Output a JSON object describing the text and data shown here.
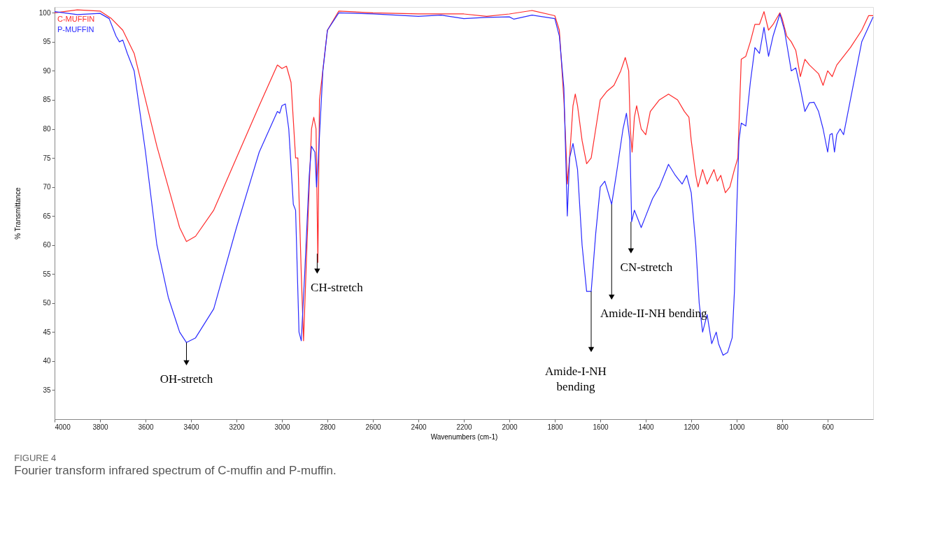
{
  "chart_data": {
    "type": "line",
    "xlabel": "Wavenumbers (cm-1)",
    "ylabel": "% Transmittance",
    "xlim": [
      4000,
      400
    ],
    "xticks": [
      4000,
      3800,
      3600,
      3400,
      3200,
      3000,
      2800,
      2600,
      2400,
      2200,
      2000,
      1800,
      1600,
      1400,
      1200,
      1000,
      800,
      600
    ],
    "ylim": [
      30,
      101
    ],
    "yticks": [
      35,
      40,
      45,
      50,
      55,
      60,
      65,
      70,
      75,
      80,
      85,
      90,
      95,
      100
    ],
    "grid": false,
    "legend": "top left",
    "line_style": "solid",
    "marker": "none",
    "series": [
      {
        "name": "C-MUFFIN",
        "color": "#ff2a2a",
        "x": [
          4000,
          3900,
          3800,
          3750,
          3700,
          3650,
          3600,
          3550,
          3500,
          3450,
          3420,
          3380,
          3300,
          3200,
          3100,
          3020,
          3000,
          2980,
          2960,
          2940,
          2930,
          2915,
          2905,
          2890,
          2870,
          2860,
          2850,
          2842,
          2835,
          2800,
          2750,
          2600,
          2400,
          2200,
          2100,
          2000,
          1900,
          1800,
          1780,
          1760,
          1750,
          1745,
          1735,
          1720,
          1710,
          1700,
          1680,
          1660,
          1640,
          1620,
          1600,
          1570,
          1540,
          1510,
          1490,
          1475,
          1468,
          1460,
          1450,
          1440,
          1420,
          1400,
          1380,
          1340,
          1300,
          1260,
          1230,
          1210,
          1200,
          1180,
          1170,
          1150,
          1130,
          1100,
          1085,
          1070,
          1050,
          1030,
          1010,
          995,
          980,
          960,
          940,
          920,
          900,
          880,
          860,
          840,
          810,
          800,
          780,
          760,
          740,
          720,
          700,
          680,
          640,
          620,
          600,
          580,
          560,
          500,
          450,
          420,
          400
        ],
        "values": [
          100,
          100.5,
          100.3,
          99,
          97,
          93,
          85,
          77,
          70,
          63,
          60.6,
          61.5,
          66,
          75,
          84,
          91,
          90.4,
          90.8,
          88,
          75,
          75,
          55,
          43.5,
          60,
          80,
          82,
          80,
          57,
          85,
          97,
          100.3,
          100,
          99.8,
          99.8,
          99.4,
          99.8,
          100.4,
          99.5,
          97,
          85,
          76,
          70.5,
          75,
          84,
          86,
          84,
          78,
          74,
          75,
          80,
          85,
          86.5,
          87.5,
          90,
          92.3,
          90,
          80,
          76,
          82,
          84,
          80,
          79,
          83,
          85,
          86,
          85,
          83,
          82,
          78,
          72,
          70,
          73,
          70.5,
          73,
          71,
          72,
          69,
          70,
          73,
          75,
          92,
          92.5,
          95,
          98,
          98,
          100.2,
          97,
          98,
          100,
          99,
          96,
          95,
          93.5,
          89,
          92,
          91,
          89.5,
          87.5,
          90,
          89,
          91,
          94,
          97,
          99.5,
          99.5
        ]
      },
      {
        "name": "P-MUFFIN",
        "color": "#2a2aff",
        "x": [
          4000,
          3900,
          3800,
          3760,
          3730,
          3715,
          3700,
          3680,
          3650,
          3600,
          3550,
          3500,
          3450,
          3420,
          3380,
          3300,
          3200,
          3100,
          3020,
          3010,
          3000,
          2985,
          2970,
          2950,
          2940,
          2925,
          2915,
          2900,
          2880,
          2870,
          2855,
          2848,
          2840,
          2820,
          2800,
          2750,
          2600,
          2400,
          2300,
          2200,
          2100,
          2000,
          1980,
          1900,
          1800,
          1780,
          1760,
          1745,
          1735,
          1720,
          1700,
          1680,
          1660,
          1640,
          1620,
          1600,
          1580,
          1550,
          1530,
          1500,
          1485,
          1470,
          1462,
          1450,
          1440,
          1420,
          1400,
          1370,
          1340,
          1300,
          1270,
          1240,
          1220,
          1200,
          1180,
          1165,
          1150,
          1130,
          1110,
          1090,
          1080,
          1060,
          1040,
          1020,
          1010,
          1000,
          990,
          980,
          960,
          940,
          920,
          900,
          880,
          860,
          840,
          810,
          790,
          760,
          740,
          720,
          700,
          680,
          660,
          640,
          620,
          600,
          590,
          580,
          570,
          560,
          545,
          530,
          500,
          450,
          400
        ],
        "values": [
          100.2,
          99.7,
          99.9,
          99,
          96,
          95,
          95.3,
          93,
          90,
          76,
          60,
          51,
          45,
          43.2,
          44,
          49,
          63,
          76,
          83,
          82.7,
          84,
          84.3,
          80,
          67,
          66,
          45,
          43.5,
          55,
          72,
          77,
          76,
          70,
          75,
          90,
          97,
          100,
          99.8,
          99.4,
          99.6,
          99,
          99.2,
          99.3,
          98.9,
          99.6,
          99,
          96,
          87,
          65,
          75,
          77.5,
          73,
          60,
          52,
          52,
          62,
          70,
          71,
          67,
          72,
          80,
          82.7,
          78,
          64,
          66,
          65,
          63,
          65,
          68,
          70,
          73.9,
          72,
          70.5,
          72,
          69,
          60,
          50,
          45,
          48,
          43,
          45,
          43,
          41,
          41.5,
          44,
          52,
          66,
          78,
          81,
          80.5,
          88,
          94,
          93,
          97.5,
          92.5,
          96,
          99.8,
          97,
          90,
          90.5,
          87,
          83,
          84.5,
          84.6,
          83,
          80,
          76,
          79,
          79.2,
          76,
          79,
          80,
          79,
          85,
          95,
          99.3
        ]
      }
    ],
    "annotations": [
      {
        "text": "OH-stretch",
        "x": 3420,
        "y": 43.2
      },
      {
        "text": "CH-stretch",
        "x": 2845,
        "y": 58.5
      },
      {
        "text": "Amide-I-NH bending",
        "x": 1640,
        "y": 52
      },
      {
        "text": "Amide-II-NH  bending",
        "x": 1550,
        "y": 67
      },
      {
        "text": "CN-stretch",
        "x": 1465,
        "y": 64
      },
      "FIGURE 4",
      "Fourier transform infrared spectrum of C-muffin and P-muffin."
    ]
  }
}
